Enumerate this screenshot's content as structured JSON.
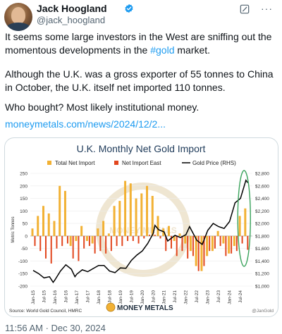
{
  "author": {
    "name": "Jack Hoogland",
    "handle": "@jack_hoogland"
  },
  "tweet": {
    "p1_before": "It seems some large investors in the West are sniffing out the momentous developments in the ",
    "hashtag": "#gold",
    "p1_after": " market.",
    "p2": "Although the U.K. was a gross exporter of 55 tonnes to China in October, the U.K. itself net imported 110 tonnes.",
    "p3": "Who bought? Most likely institutional money.",
    "link": "moneymetals.com/news/2024/12/2..."
  },
  "timestamp": "11:56 AM · Dec 30, 2024",
  "icons": {
    "verified": "verified-badge-icon",
    "grok": "grok-icon",
    "more": "more-options-icon"
  },
  "colors": {
    "link": "#1d9bf0",
    "total_net_import": "#f2b134",
    "net_import_east": "#e2461e",
    "gold_price": "#000000",
    "highlight_ellipse": "#3aa35c"
  },
  "chart_data": {
    "type": "bar",
    "title": "U.K. Monthly Net Gold Import",
    "legend": [
      "Total Net Import",
      "Net Import East",
      "Gold Price (RHS)"
    ],
    "legend_position": "top",
    "ylabel": "Metric Tonnes",
    "ylim": [
      -200,
      250
    ],
    "y_ticks": [
      "250",
      "200",
      "150",
      "100",
      "50",
      "0",
      "-50",
      "-100",
      "-150",
      "-200"
    ],
    "y2lim": [
      1000,
      2800
    ],
    "y2_ticks": [
      "$2,800",
      "$2,600",
      "$2,400",
      "$2,200",
      "$2,000",
      "$1,800",
      "$1,600",
      "$1,400",
      "$1,200",
      "$1,000"
    ],
    "x_ticks": [
      "Jan-15",
      "Jul-15",
      "Jan-16",
      "Jul-16",
      "Jan-17",
      "Jul-17",
      "Jan-18",
      "Jul-18",
      "Jan-19",
      "Jul-19",
      "Jan-20",
      "Jul-20",
      "Jan-21",
      "Jul-21",
      "Jan-22",
      "Jul-22",
      "Jan-23",
      "Jul-23",
      "Jan-24",
      "Jul-24"
    ],
    "source": "Source: World Gold Council, HMRC",
    "watermark_brand": "MONEY METALS",
    "credit": "@JanGold",
    "gold_price_series": [
      {
        "x": "Jan-15",
        "y": 1250
      },
      {
        "x": "Apr-15",
        "y": 1200
      },
      {
        "x": "Jul-15",
        "y": 1130
      },
      {
        "x": "Oct-15",
        "y": 1150
      },
      {
        "x": "Dec-15",
        "y": 1060
      },
      {
        "x": "Jan-16",
        "y": 1100
      },
      {
        "x": "Apr-16",
        "y": 1240
      },
      {
        "x": "Jul-16",
        "y": 1340
      },
      {
        "x": "Oct-16",
        "y": 1270
      },
      {
        "x": "Dec-16",
        "y": 1150
      },
      {
        "x": "Jan-17",
        "y": 1190
      },
      {
        "x": "Apr-17",
        "y": 1260
      },
      {
        "x": "Jul-17",
        "y": 1230
      },
      {
        "x": "Oct-17",
        "y": 1280
      },
      {
        "x": "Jan-18",
        "y": 1330
      },
      {
        "x": "Apr-18",
        "y": 1330
      },
      {
        "x": "Jul-18",
        "y": 1240
      },
      {
        "x": "Oct-18",
        "y": 1215
      },
      {
        "x": "Jan-19",
        "y": 1290
      },
      {
        "x": "Apr-19",
        "y": 1285
      },
      {
        "x": "Jul-19",
        "y": 1410
      },
      {
        "x": "Oct-19",
        "y": 1495
      },
      {
        "x": "Jan-20",
        "y": 1560
      },
      {
        "x": "Apr-20",
        "y": 1680
      },
      {
        "x": "Jul-20",
        "y": 1840
      },
      {
        "x": "Aug-20",
        "y": 1970
      },
      {
        "x": "Oct-20",
        "y": 1900
      },
      {
        "x": "Jan-21",
        "y": 1865
      },
      {
        "x": "Mar-21",
        "y": 1720
      },
      {
        "x": "Jul-21",
        "y": 1810
      },
      {
        "x": "Oct-21",
        "y": 1775
      },
      {
        "x": "Jan-22",
        "y": 1820
      },
      {
        "x": "Mar-22",
        "y": 1950
      },
      {
        "x": "Jul-22",
        "y": 1730
      },
      {
        "x": "Oct-22",
        "y": 1665
      },
      {
        "x": "Jan-23",
        "y": 1890
      },
      {
        "x": "Apr-23",
        "y": 2000
      },
      {
        "x": "Jul-23",
        "y": 1950
      },
      {
        "x": "Oct-23",
        "y": 1920
      },
      {
        "x": "Jan-24",
        "y": 2030
      },
      {
        "x": "Apr-24",
        "y": 2330
      },
      {
        "x": "Jul-24",
        "y": 2400
      },
      {
        "x": "Oct-24",
        "y": 2690
      },
      {
        "x": "Nov-24",
        "y": 2650
      }
    ],
    "net_import_bars": [
      {
        "x": "Jan-15",
        "total": 30,
        "east": -40
      },
      {
        "x": "Apr-15",
        "total": 80,
        "east": -60
      },
      {
        "x": "Jul-15",
        "total": 120,
        "east": -90
      },
      {
        "x": "Oct-15",
        "total": 90,
        "east": -110
      },
      {
        "x": "Jan-16",
        "total": 60,
        "east": -50
      },
      {
        "x": "Apr-16",
        "total": 200,
        "east": -40
      },
      {
        "x": "Jul-16",
        "total": 180,
        "east": -30
      },
      {
        "x": "Oct-16",
        "total": -40,
        "east": -90
      },
      {
        "x": "Jan-17",
        "total": -20,
        "east": -100
      },
      {
        "x": "Apr-17",
        "total": 40,
        "east": -50
      },
      {
        "x": "Jul-17",
        "total": -20,
        "east": -40
      },
      {
        "x": "Oct-17",
        "total": -30,
        "east": -70
      },
      {
        "x": "Jan-18",
        "total": 30,
        "east": -60
      },
      {
        "x": "Apr-18",
        "total": 60,
        "east": -70
      },
      {
        "x": "Jul-18",
        "total": 10,
        "east": -60
      },
      {
        "x": "Oct-18",
        "total": 120,
        "east": -40
      },
      {
        "x": "Jan-19",
        "total": 140,
        "east": -40
      },
      {
        "x": "Apr-19",
        "total": 220,
        "east": -20
      },
      {
        "x": "Jul-19",
        "total": 210,
        "east": -20
      },
      {
        "x": "Oct-19",
        "total": 150,
        "east": -30
      },
      {
        "x": "Jan-20",
        "total": 170,
        "east": -10
      },
      {
        "x": "Apr-20",
        "total": 200,
        "east": 5
      },
      {
        "x": "Jul-20",
        "total": 160,
        "east": 5
      },
      {
        "x": "Oct-20",
        "total": 80,
        "east": -10
      },
      {
        "x": "Jan-21",
        "total": 30,
        "east": -60
      },
      {
        "x": "Apr-21",
        "total": 40,
        "east": -50
      },
      {
        "x": "Jul-21",
        "total": -20,
        "east": -80
      },
      {
        "x": "Oct-21",
        "total": 10,
        "east": -60
      },
      {
        "x": "Jan-22",
        "total": -30,
        "east": -90
      },
      {
        "x": "Apr-22",
        "total": -60,
        "east": -80
      },
      {
        "x": "Jul-22",
        "total": -120,
        "east": -140
      },
      {
        "x": "Oct-22",
        "total": -140,
        "east": -120
      },
      {
        "x": "Jan-23",
        "total": -80,
        "east": -60
      },
      {
        "x": "Apr-23",
        "total": -60,
        "east": -50
      },
      {
        "x": "Jul-23",
        "total": 20,
        "east": -40
      },
      {
        "x": "Oct-23",
        "total": -30,
        "east": -80
      },
      {
        "x": "Jan-24",
        "total": -70,
        "east": -70
      },
      {
        "x": "Apr-24",
        "total": -40,
        "east": -60
      },
      {
        "x": "Jul-24",
        "total": 80,
        "east": -30
      },
      {
        "x": "Oct-24",
        "total": 110,
        "east": -55
      }
    ]
  }
}
